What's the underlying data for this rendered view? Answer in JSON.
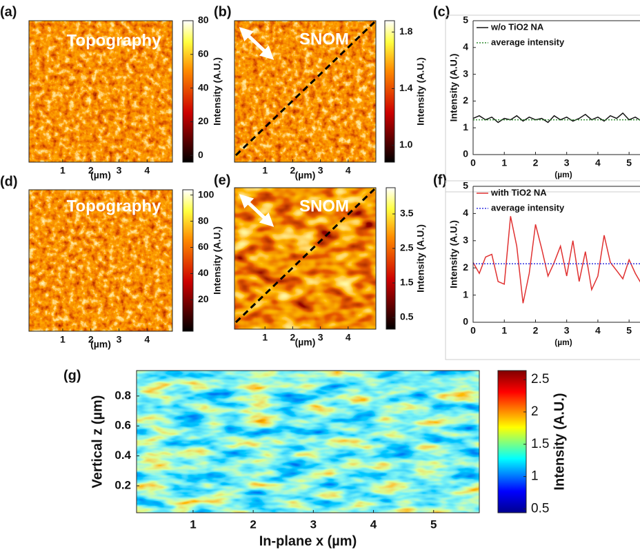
{
  "chart_data": [
    {
      "type": "heatmap",
      "panel_label": "(a)",
      "annotation": "Topography",
      "x_label": "(µm)",
      "xlim": [
        -0.2,
        4.9
      ],
      "xticks": [
        1,
        2,
        3,
        4
      ],
      "colormap": "hot",
      "colorbar": {
        "label": "Intensity (A.U.)",
        "lim": [
          -4,
          80
        ],
        "ticks": [
          0,
          20,
          40,
          60,
          80
        ]
      }
    },
    {
      "type": "heatmap",
      "panel_label": "(b)",
      "annotation": "SNOM",
      "x_label": "(µm)",
      "xlim": [
        -0.1,
        5.0
      ],
      "xticks": [
        1,
        2,
        3,
        4
      ],
      "colormap": "hot",
      "colorbar": {
        "label": "Intensity (A.U.)",
        "lim": [
          0.88,
          1.88
        ],
        "ticks": [
          {
            "value": 1,
            "label": "1.0"
          },
          1.4,
          1.8
        ]
      }
    },
    {
      "type": "line",
      "panel_label": "(c)",
      "x_label": "(µm)",
      "y_label": "Intensity (A.U.)",
      "xlim": [
        0,
        5.35
      ],
      "xticks": [
        0,
        1,
        2,
        3,
        4,
        5
      ],
      "ylim": [
        0,
        5
      ],
      "yticks": [
        0,
        1,
        2,
        3,
        4,
        5
      ],
      "legend": "upper left",
      "series": [
        {
          "name": "w/o TiO2 NA",
          "color": "#111111",
          "style": "solid",
          "x": [
            0,
            0.2,
            0.4,
            0.6,
            0.8,
            1,
            1.2,
            1.4,
            1.6,
            1.8,
            2,
            2.2,
            2.4,
            2.6,
            2.8,
            3,
            3.2,
            3.4,
            3.6,
            3.8,
            4,
            4.2,
            4.4,
            4.6,
            4.8,
            5,
            5.2,
            5.4
          ],
          "values": [
            1.35,
            1.45,
            1.3,
            1.4,
            1.2,
            1.35,
            1.3,
            1.45,
            1.25,
            1.4,
            1.3,
            1.35,
            1.2,
            1.45,
            1.3,
            1.4,
            1.25,
            1.35,
            1.5,
            1.3,
            1.4,
            1.25,
            1.45,
            1.35,
            1.55,
            1.3,
            1.4,
            1.25
          ]
        },
        {
          "name": "average intensity",
          "color": "#2e8b2e",
          "style": "dotted",
          "x": [
            0,
            5.35
          ],
          "values": [
            1.3,
            1.3
          ]
        }
      ]
    },
    {
      "type": "heatmap",
      "panel_label": "(d)",
      "annotation": "Topography",
      "x_label": "(µm)",
      "xlim": [
        -0.2,
        4.9
      ],
      "xticks": [
        1,
        2,
        3,
        4
      ],
      "colormap": "hot",
      "colorbar": {
        "label": "Intensity (A.U.)",
        "lim": [
          -4,
          104
        ],
        "ticks": [
          20,
          40,
          60,
          80,
          100
        ]
      }
    },
    {
      "type": "heatmap",
      "panel_label": "(e)",
      "annotation": "SNOM",
      "x_label": "(µm)",
      "xlim": [
        -0.1,
        5.0
      ],
      "xticks": [
        1,
        2,
        3,
        4
      ],
      "colormap": "hot",
      "colorbar": {
        "label": "Intensity (A.U.)",
        "lim": [
          0.16,
          4.26
        ],
        "ticks": [
          0.5,
          1.5,
          2.5,
          3.5
        ]
      }
    },
    {
      "type": "line",
      "panel_label": "(f)",
      "x_label": "(µm)",
      "y_label": "Intensity (A.U.)",
      "xlim": [
        0,
        5.35
      ],
      "xticks": [
        0,
        1,
        2,
        3,
        4,
        5
      ],
      "ylim": [
        0,
        5
      ],
      "yticks": [
        0,
        1,
        2,
        3,
        4,
        5
      ],
      "legend": "upper left",
      "series": [
        {
          "name": "with TiO2 NA",
          "color": "#e03030",
          "style": "solid",
          "x": [
            0,
            0.2,
            0.4,
            0.6,
            0.8,
            1,
            1.2,
            1.4,
            1.6,
            1.8,
            2,
            2.2,
            2.4,
            2.6,
            2.8,
            3,
            3.2,
            3.4,
            3.6,
            3.8,
            4,
            4.2,
            4.4,
            4.6,
            4.8,
            5,
            5.2,
            5.4
          ],
          "values": [
            2.2,
            1.8,
            2.4,
            2.5,
            1.5,
            1.4,
            3.9,
            2.8,
            0.7,
            1.8,
            3.6,
            2.7,
            1.7,
            2.2,
            2.8,
            1.7,
            3.0,
            1.5,
            2.6,
            1.2,
            1.7,
            3.2,
            2.2,
            1.9,
            1.6,
            2.3,
            1.8,
            1.4
          ]
        },
        {
          "name": "average intensity",
          "color": "#3030e0",
          "style": "dotted",
          "x": [
            0,
            5.35
          ],
          "values": [
            2.15,
            2.15
          ]
        }
      ]
    },
    {
      "type": "heatmap",
      "panel_label": "(g)",
      "x_label": "In-plane x (µm)",
      "y_label": "Vertical z (µm)",
      "xlim": [
        0.06,
        5.76
      ],
      "xticks": [
        1,
        2,
        3,
        4,
        5
      ],
      "ylim": [
        0.02,
        0.97
      ],
      "yticks": [
        0.2,
        0.4,
        0.6,
        0.8
      ],
      "colormap": "jet",
      "colorbar": {
        "label": "Intensity (A.U.)",
        "lim": [
          0.44,
          2.64
        ],
        "ticks": [
          0.5,
          1,
          1.5,
          2,
          2.5
        ]
      }
    }
  ]
}
